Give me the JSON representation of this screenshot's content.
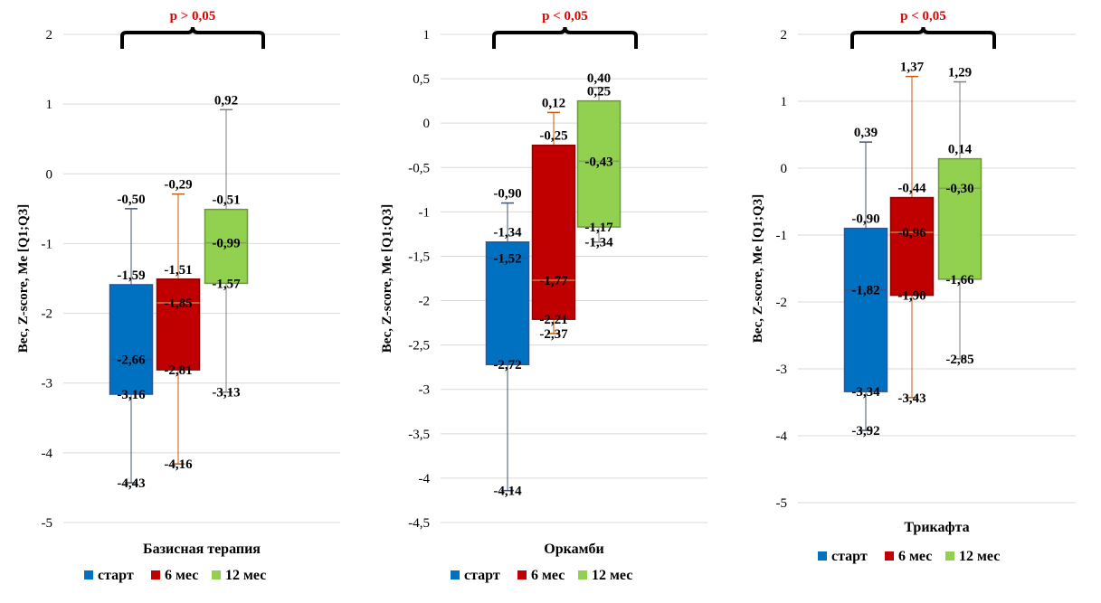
{
  "chart_data": [
    {
      "type": "box",
      "xlabel": "Базисная терапия",
      "ylabel": "Вес, Z-score, Me [Q1;Q3]",
      "ylim": [
        -5,
        2
      ],
      "yticks": [
        "2",
        "1",
        "0",
        "-1",
        "-2",
        "-3",
        "-4",
        "-5"
      ],
      "p_label": "p > 0,05",
      "series": [
        {
          "name": "старт",
          "max": -0.5,
          "q3": -1.59,
          "median": -2.66,
          "q1": -3.16,
          "min": -4.43,
          "labels": [
            "-0,50",
            "-1,59",
            "-2,66",
            "-3,16",
            "-4,43"
          ]
        },
        {
          "name": "6 мес",
          "max": -0.29,
          "q3": -1.51,
          "median": -1.85,
          "q1": -2.81,
          "min": -4.16,
          "labels": [
            "-0,29",
            "-1,51",
            "-1,85",
            "-2,81",
            "-4,16"
          ]
        },
        {
          "name": "12 мес",
          "max": 0.92,
          "q3": -0.51,
          "median": -0.99,
          "q1": -1.57,
          "min": -3.13,
          "labels": [
            "0,92",
            "-0,51",
            "-0,99",
            "-1,57",
            "-3,13"
          ]
        }
      ]
    },
    {
      "type": "box",
      "xlabel": "Оркамби",
      "ylabel": "Вес, Z-score, Me [Q1;Q3]",
      "ylim": [
        -4.5,
        1
      ],
      "yticks": [
        "1",
        "0,5",
        "0",
        "-0,5",
        "-1",
        "-1,5",
        "-2",
        "-2,5",
        "-3",
        "-3,5",
        "-4",
        "-4,5"
      ],
      "p_label": "p < 0,05",
      "series": [
        {
          "name": "старт",
          "max": -0.9,
          "q3": -1.34,
          "median": -1.52,
          "q1": -2.72,
          "min": -4.14,
          "labels": [
            "-0,90",
            "-1,34",
            "-1,52",
            "-2,72",
            "-4,14"
          ]
        },
        {
          "name": "6 мес",
          "max": 0.12,
          "q3": -0.25,
          "median": -1.77,
          "q1": -2.21,
          "min": -2.37,
          "labels": [
            "0,12",
            "-0,25",
            "-1,77",
            "-2,21",
            "-2,37"
          ]
        },
        {
          "name": "12 мес",
          "max": 0.4,
          "q3": 0.25,
          "median": -0.43,
          "q1": -1.17,
          "min": -1.34,
          "labels": [
            "0,40",
            "0,25",
            "-0,43",
            "-1,17",
            "-1,34"
          ]
        }
      ]
    },
    {
      "type": "box",
      "xlabel": "Трикафта",
      "ylabel": "Вес, Z-score, Me [Q1;Q3]",
      "ylim": [
        -5,
        2
      ],
      "yticks": [
        "2",
        "1",
        "0",
        "-1",
        "-2",
        "-3",
        "-4",
        "-5"
      ],
      "p_label": "p < 0,05",
      "series": [
        {
          "name": "старт",
          "max": 0.39,
          "q3": -0.9,
          "median": -1.82,
          "q1": -3.34,
          "min": -3.92,
          "labels": [
            "0,39",
            "-0,90",
            "-1,82",
            "-3,34",
            "-3,92"
          ]
        },
        {
          "name": "6 мес",
          "max": 1.37,
          "q3": -0.44,
          "median": -0.96,
          "q1": -1.9,
          "min": -3.43,
          "labels": [
            "1,37",
            "-0,44",
            "-0,96",
            "-1,90",
            "-3,43"
          ]
        },
        {
          "name": "12 мес",
          "max": 1.29,
          "q3": 0.14,
          "median": -0.3,
          "q1": -1.66,
          "min": -2.85,
          "labels": [
            "1,29",
            "0,14",
            "-0,30",
            "-1,66",
            "-2,85"
          ]
        }
      ]
    }
  ],
  "legend": [
    {
      "name": "старт",
      "color": "#0070c0"
    },
    {
      "name": "6 мес",
      "color": "#c00000"
    },
    {
      "name": "12 мес",
      "color": "#92d050"
    }
  ],
  "colors": {
    "box_fill": [
      "#0070c0",
      "#c00000",
      "#92d050"
    ],
    "box_stroke": [
      "#2f5597",
      "#8b0000",
      "#6a9a38"
    ],
    "whisker": [
      "#44546a",
      "#c55a11",
      "#7f7f7f"
    ],
    "median": [
      "#2f5597",
      "#c97a3c",
      "#7aa84e"
    ],
    "p_text": "#e00000",
    "grid": "#d9d9d9"
  }
}
